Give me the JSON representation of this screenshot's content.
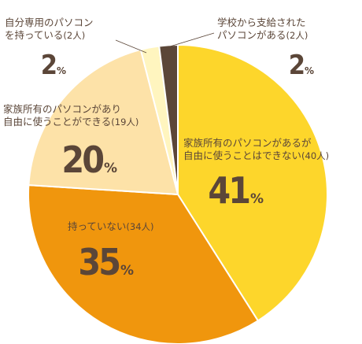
{
  "chart_data": {
    "type": "pie",
    "slices": [
      {
        "label": "家族所有のパソコンがあるが\n自由に使うことはできない",
        "count": "(40人)",
        "percent": 41,
        "color": "#fdd62b"
      },
      {
        "label": "持っていない",
        "count": "(34人)",
        "percent": 35,
        "color": "#f0960d"
      },
      {
        "label": "家族所有のパソコンがあり\n自由に使うことができる",
        "count": "(19人)",
        "percent": 20,
        "color": "#fde2a8"
      },
      {
        "label": "自分専用のパソコン\nを持っている",
        "count": "(2人)",
        "percent": 2,
        "color": "#fff5bf"
      },
      {
        "label": "学校から支給された\nパソコンがある",
        "count": "(2人)",
        "percent": 2,
        "color": "#5b4638"
      }
    ],
    "percent_unit": "%",
    "text_color": "#5b4638"
  }
}
